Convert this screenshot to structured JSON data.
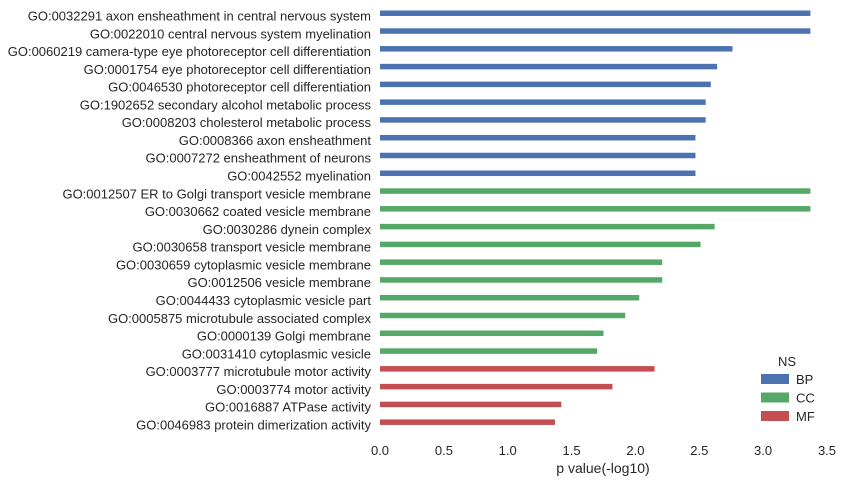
{
  "chart_data": {
    "type": "bar",
    "orientation": "horizontal",
    "xlabel": "p value(-log10)",
    "ylabel": "",
    "xlim": [
      0,
      3.5
    ],
    "xticks": [
      "0.0",
      "0.5",
      "1.0",
      "1.5",
      "2.0",
      "2.5",
      "3.0",
      "3.5"
    ],
    "grid": false,
    "legend": {
      "title": "NS",
      "placement": "bottom-right"
    },
    "series": [
      {
        "name": "BP",
        "color": "#4C72B0"
      },
      {
        "name": "CC",
        "color": "#55A868"
      },
      {
        "name": "MF",
        "color": "#C44E52"
      }
    ],
    "bars": [
      {
        "label": "GO:0032291 axon ensheathment in central nervous system",
        "value": 3.37,
        "ns": "BP"
      },
      {
        "label": "GO:0022010 central nervous system myelination",
        "value": 3.37,
        "ns": "BP"
      },
      {
        "label": "GO:0060219 camera-type eye photoreceptor cell differentiation",
        "value": 2.76,
        "ns": "BP"
      },
      {
        "label": "GO:0001754 eye photoreceptor cell differentiation",
        "value": 2.64,
        "ns": "BP"
      },
      {
        "label": "GO:0046530 photoreceptor cell differentiation",
        "value": 2.59,
        "ns": "BP"
      },
      {
        "label": "GO:1902652 secondary alcohol metabolic process",
        "value": 2.55,
        "ns": "BP"
      },
      {
        "label": "GO:0008203 cholesterol metabolic process",
        "value": 2.55,
        "ns": "BP"
      },
      {
        "label": "GO:0008366 axon ensheathment",
        "value": 2.47,
        "ns": "BP"
      },
      {
        "label": "GO:0007272 ensheathment of neurons",
        "value": 2.47,
        "ns": "BP"
      },
      {
        "label": "GO:0042552 myelination",
        "value": 2.47,
        "ns": "BP"
      },
      {
        "label": "GO:0012507 ER to Golgi transport vesicle membrane",
        "value": 3.37,
        "ns": "CC"
      },
      {
        "label": "GO:0030662 coated vesicle membrane",
        "value": 3.37,
        "ns": "CC"
      },
      {
        "label": "GO:0030286 dynein complex",
        "value": 2.62,
        "ns": "CC"
      },
      {
        "label": "GO:0030658 transport vesicle membrane",
        "value": 2.51,
        "ns": "CC"
      },
      {
        "label": "GO:0030659 cytoplasmic vesicle membrane",
        "value": 2.21,
        "ns": "CC"
      },
      {
        "label": "GO:0012506 vesicle membrane",
        "value": 2.21,
        "ns": "CC"
      },
      {
        "label": "GO:0044433 cytoplasmic vesicle part",
        "value": 2.03,
        "ns": "CC"
      },
      {
        "label": "GO:0005875 microtubule associated complex",
        "value": 1.92,
        "ns": "CC"
      },
      {
        "label": "GO:0000139 Golgi membrane",
        "value": 1.75,
        "ns": "CC"
      },
      {
        "label": "GO:0031410 cytoplasmic vesicle",
        "value": 1.7,
        "ns": "CC"
      },
      {
        "label": "GO:0003777 microtubule motor activity",
        "value": 2.15,
        "ns": "MF"
      },
      {
        "label": "GO:0003774 motor activity",
        "value": 1.82,
        "ns": "MF"
      },
      {
        "label": "GO:0016887 ATPase activity",
        "value": 1.42,
        "ns": "MF"
      },
      {
        "label": "GO:0046983 protein dimerization activity",
        "value": 1.37,
        "ns": "MF"
      }
    ]
  }
}
